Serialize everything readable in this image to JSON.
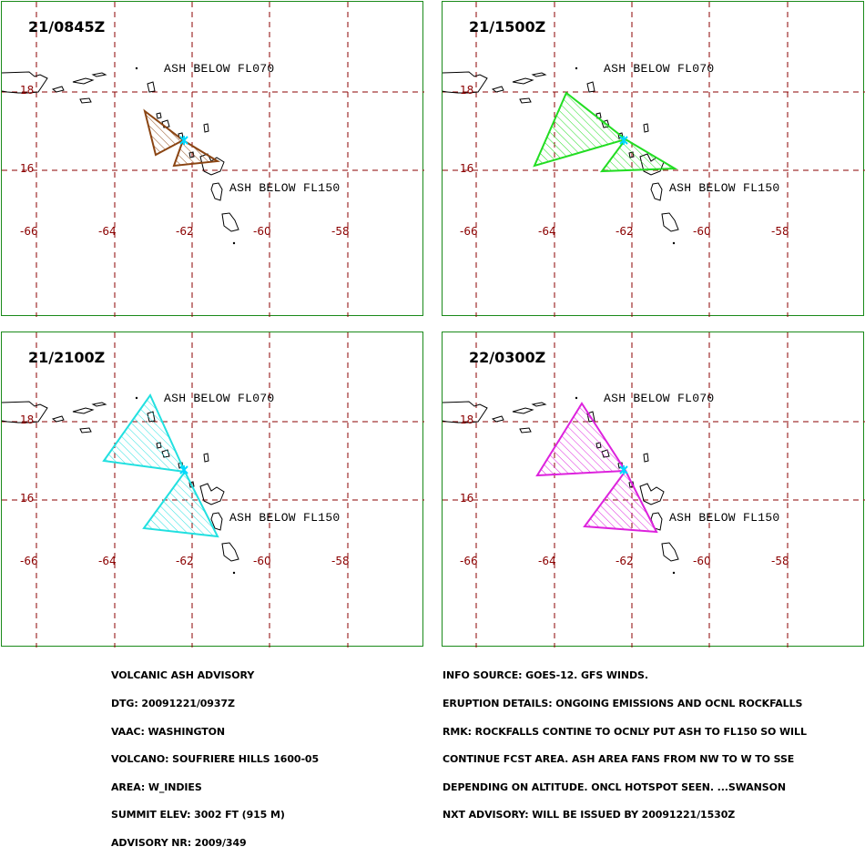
{
  "panels": [
    {
      "title": "21/0845Z",
      "color": "#8b4513",
      "fill": "#c8a07a",
      "polygons": [
        [
          [
            158,
            121
          ],
          [
            200,
            153
          ],
          [
            170,
            169
          ]
        ],
        [
          [
            200,
            153
          ],
          [
            238,
            176
          ],
          [
            190,
            181
          ]
        ]
      ]
    },
    {
      "title": "21/1500Z",
      "color": "#22dd22",
      "fill": "#77ee77",
      "polygons": [
        [
          [
            621,
            101
          ],
          [
            686,
            152
          ],
          [
            586,
            181
          ]
        ],
        [
          [
            686,
            152
          ],
          [
            740,
            184
          ],
          [
            660,
            187
          ]
        ]
      ]
    },
    {
      "title": "21/2100Z",
      "color": "#22e0e0",
      "fill": "#7ff0f0",
      "polygons": [
        [
          [
            164,
            433
          ],
          [
            202,
            517
          ],
          [
            113,
            505
          ]
        ],
        [
          [
            202,
            517
          ],
          [
            238,
            588
          ],
          [
            157,
            579
          ]
        ]
      ]
    },
    {
      "title": "22/0300Z",
      "color": "#dd22dd",
      "fill": "#ee88ee",
      "polygons": [
        [
          [
            638,
            442
          ],
          [
            686,
            516
          ],
          [
            589,
            521
          ]
        ],
        [
          [
            686,
            516
          ],
          [
            720,
            583
          ],
          [
            641,
            577
          ]
        ]
      ]
    }
  ],
  "labels": {
    "upper": "ASH BELOW FL070",
    "lower": "ASH BELOW FL150"
  },
  "lat_ticks": [
    "18",
    "16"
  ],
  "lon_ticks": [
    "-66",
    "-64",
    "-62",
    "-60",
    "-58"
  ],
  "advisory_left": [
    "VOLCANIC ASH ADVISORY",
    "DTG: 20091221/0937Z",
    "VAAC: WASHINGTON",
    "VOLCANO: SOUFRIERE HILLS 1600-05",
    "AREA: W_INDIES",
    "SUMMIT ELEV: 3002 FT (915 M)",
    "ADVISORY NR: 2009/349"
  ],
  "advisory_right": [
    "INFO SOURCE: GOES-12. GFS WINDS.",
    "ERUPTION DETAILS: ONGOING EMISSIONS AND OCNL ROCKFALLS",
    "RMK: ROCKFALLS CONTINE TO OCNLY PUT ASH TO FL150 SO WILL",
    "CONTINUE FCST AREA. ASH AREA FANS FROM NW TO W TO SSE",
    "DEPENDING ON ALTITUDE. ONCL HOTSPOT SEEN. ...SWANSON",
    "NXT ADVISORY: WILL BE ISSUED BY 20091221/1530Z"
  ]
}
